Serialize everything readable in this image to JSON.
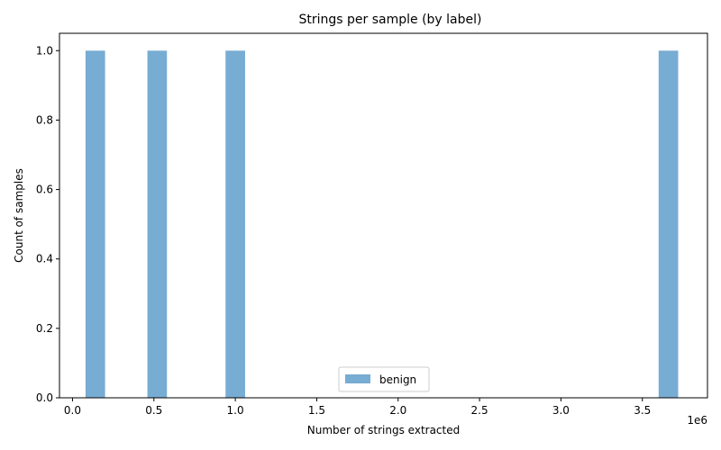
{
  "chart_data": {
    "type": "bar",
    "title": "Strings per sample (by label)",
    "xlabel": "Number of strings extracted",
    "ylabel": "Count of samples",
    "x_offset_label": "1e6",
    "x_scale": 1000000,
    "xlim": [
      -0.08,
      3.9
    ],
    "ylim": [
      0,
      1.05
    ],
    "x_ticks": [
      "0.0",
      "0.5",
      "1.0",
      "1.5",
      "2.0",
      "2.5",
      "3.0",
      "3.5"
    ],
    "y_ticks": [
      "0.0",
      "0.2",
      "0.4",
      "0.6",
      "0.8",
      "1.0"
    ],
    "legend_position": "bottom-center",
    "series": [
      {
        "name": "benign",
        "color": "#77acd3",
        "bins": [
          {
            "start": 0.08,
            "end": 0.2,
            "count": 1
          },
          {
            "start": 0.46,
            "end": 0.58,
            "count": 1
          },
          {
            "start": 0.94,
            "end": 1.06,
            "count": 1
          },
          {
            "start": 3.6,
            "end": 3.72,
            "count": 1
          }
        ]
      }
    ]
  }
}
